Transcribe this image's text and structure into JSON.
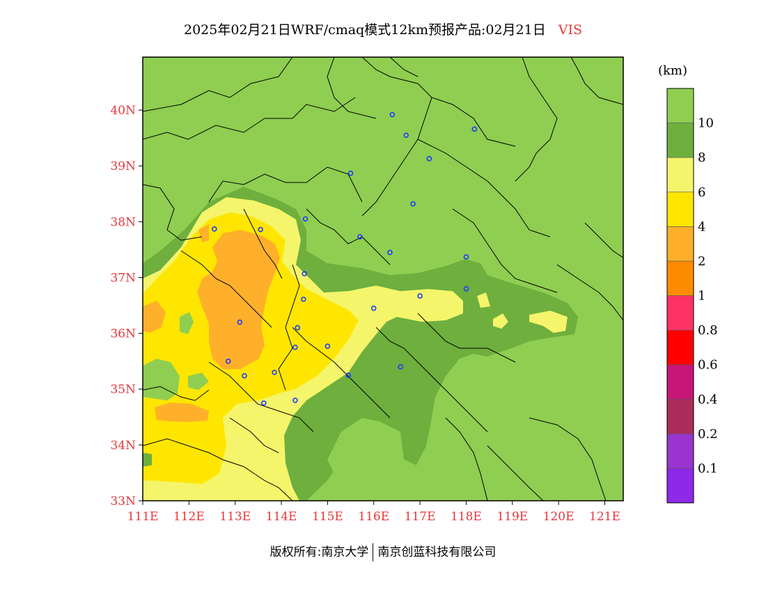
{
  "title": {
    "main": "2025年02月21日WRF/cmaq模式12km预报产品:02月21日",
    "variable": "VIS"
  },
  "map": {
    "lat_labels": [
      "40N",
      "39N",
      "38N",
      "37N",
      "36N",
      "35N",
      "34N",
      "33N"
    ],
    "lon_labels": [
      "111E",
      "112E",
      "113E",
      "114E",
      "115E",
      "116E",
      "117E",
      "118E",
      "119E",
      "120E",
      "121E"
    ],
    "extent": {
      "lon": [
        111,
        121.4
      ],
      "lat": [
        33,
        40.95
      ]
    },
    "city_markers": [
      [
        116.4,
        39.92
      ],
      [
        116.7,
        39.55
      ],
      [
        117.2,
        39.13
      ],
      [
        118.18,
        39.66
      ],
      [
        115.5,
        38.87
      ],
      [
        116.85,
        38.32
      ],
      [
        112.55,
        37.87
      ],
      [
        113.55,
        37.86
      ],
      [
        114.52,
        38.05
      ],
      [
        115.7,
        37.73
      ],
      [
        116.35,
        37.45
      ],
      [
        118.0,
        37.37
      ],
      [
        114.5,
        37.07
      ],
      [
        114.48,
        36.61
      ],
      [
        117.0,
        36.67
      ],
      [
        116.0,
        36.45
      ],
      [
        118.0,
        36.8
      ],
      [
        113.1,
        36.2
      ],
      [
        114.35,
        36.1
      ],
      [
        115.0,
        35.77
      ],
      [
        114.3,
        35.75
      ],
      [
        112.85,
        35.5
      ],
      [
        113.2,
        35.24
      ],
      [
        113.85,
        35.3
      ],
      [
        115.45,
        35.25
      ],
      [
        116.58,
        35.4
      ],
      [
        114.3,
        34.8
      ],
      [
        113.62,
        34.75
      ]
    ]
  },
  "colorbar": {
    "unit": "(km)",
    "colors": [
      "#8e29e8",
      "#9934d0",
      "#ac2c5c",
      "#c81578",
      "#ff0000",
      "#ff3266",
      "#ff8c00",
      "#ffb02a",
      "#ffe600",
      "#f4f56a",
      "#6eaf3e",
      "#8fce51"
    ],
    "labels": [
      "0.1",
      "0.2",
      "0.4",
      "0.6",
      "0.8",
      "1",
      "2",
      "4",
      "6",
      "8",
      "10"
    ]
  },
  "footer": {
    "left": "版权所有:南京大学",
    "right": "南京创蓝科技有限公司"
  }
}
